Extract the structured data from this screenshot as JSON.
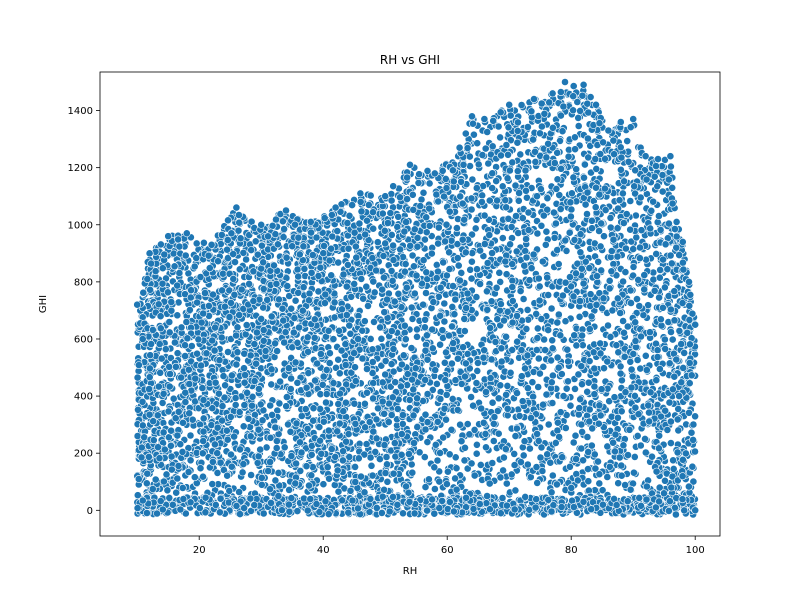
{
  "chart_data": {
    "type": "scatter",
    "title": "RH vs GHI",
    "xlabel": "RH",
    "ylabel": "GHI",
    "xlim": [
      4,
      104
    ],
    "ylim": [
      -90,
      1535
    ],
    "xticks": [
      20,
      40,
      60,
      80,
      100
    ],
    "yticks": [
      0,
      200,
      400,
      600,
      800,
      1000,
      1200,
      1400
    ],
    "grid": false,
    "legend": "none",
    "marker_color": "#1f77b4",
    "marker_edge_color": "#ffffff",
    "description_points": [
      [
        10,
        720
      ],
      [
        12,
        900
      ],
      [
        15,
        960
      ],
      [
        18,
        970
      ],
      [
        22,
        930
      ],
      [
        26,
        1060
      ],
      [
        30,
        1000
      ],
      [
        34,
        1050
      ],
      [
        38,
        1010
      ],
      [
        42,
        1060
      ],
      [
        46,
        1110
      ],
      [
        50,
        1100
      ],
      [
        54,
        1210
      ],
      [
        58,
        1180
      ],
      [
        62,
        1270
      ],
      [
        64,
        1380
      ],
      [
        66,
        1370
      ],
      [
        70,
        1420
      ],
      [
        74,
        1440
      ],
      [
        77,
        1460
      ],
      [
        79,
        1500
      ],
      [
        82,
        1490
      ],
      [
        84,
        1420
      ],
      [
        86,
        1330
      ],
      [
        88,
        1360
      ],
      [
        90,
        1370
      ],
      [
        92,
        1240
      ],
      [
        94,
        1230
      ],
      [
        96,
        1240
      ],
      [
        97,
        1010
      ],
      [
        98,
        940
      ],
      [
        99,
        800
      ],
      [
        100,
        650
      ],
      [
        100,
        0
      ]
    ]
  }
}
